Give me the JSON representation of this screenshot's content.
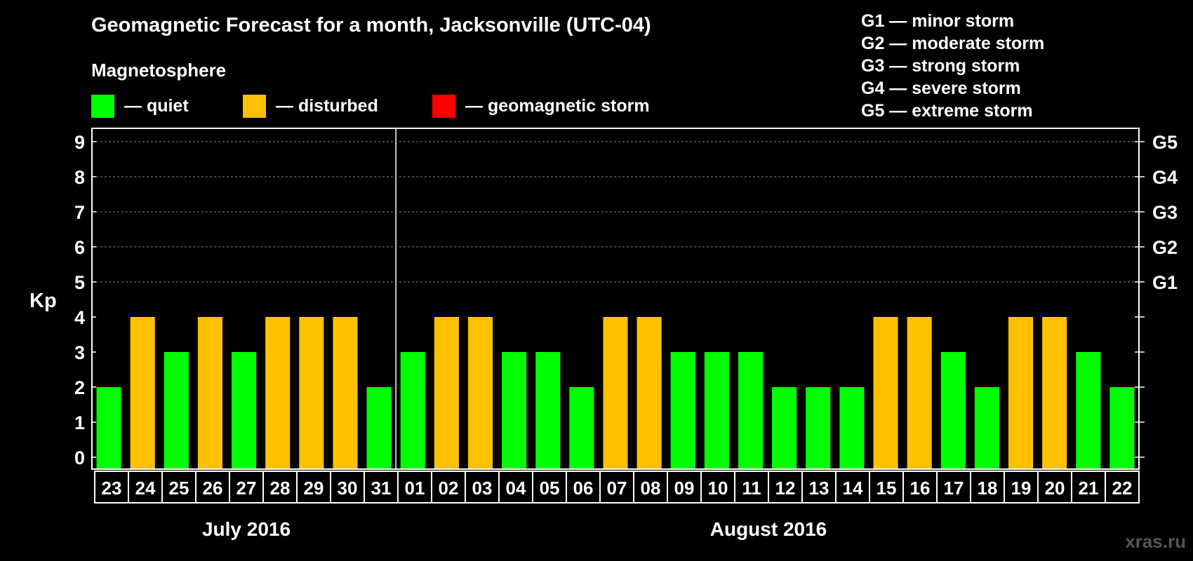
{
  "title": "Geomagnetic Forecast for a month, Jacksonville (UTC-04)",
  "legend": {
    "heading": "Magnetosphere",
    "items": [
      {
        "label": "— quiet",
        "color": "#00ff00"
      },
      {
        "label": "— disturbed",
        "color": "#ffc000"
      },
      {
        "label": "— geomagnetic storm",
        "color": "#ff0000"
      }
    ]
  },
  "storm_levels": [
    "G1 — minor storm",
    "G2 — moderate storm",
    "G3 — strong storm",
    "G4 — severe storm",
    "G5 — extreme storm"
  ],
  "watermark": "xras.ru",
  "chart_data": {
    "type": "bar",
    "ylabel": "Kp",
    "ylim": [
      0,
      9
    ],
    "yticks": [
      "0",
      "1",
      "2",
      "3",
      "4",
      "5",
      "6",
      "7",
      "8",
      "9"
    ],
    "right_ticks": [
      {
        "value": 5,
        "label": "G1"
      },
      {
        "value": 6,
        "label": "G2"
      },
      {
        "value": 7,
        "label": "G3"
      },
      {
        "value": 8,
        "label": "G4"
      },
      {
        "value": 9,
        "label": "G5"
      }
    ],
    "grid": "dashed at Kp 5-9",
    "categories": [
      "23",
      "24",
      "25",
      "26",
      "27",
      "28",
      "29",
      "30",
      "31",
      "01",
      "02",
      "03",
      "04",
      "05",
      "06",
      "07",
      "08",
      "09",
      "10",
      "11",
      "12",
      "13",
      "14",
      "15",
      "16",
      "17",
      "18",
      "19",
      "20",
      "21",
      "22"
    ],
    "values": [
      2,
      4,
      3,
      4,
      3,
      4,
      4,
      4,
      2,
      3,
      4,
      4,
      3,
      3,
      2,
      4,
      4,
      3,
      3,
      3,
      2,
      2,
      2,
      4,
      4,
      3,
      2,
      4,
      4,
      3,
      2
    ],
    "month_groups": [
      {
        "label": "July 2016",
        "count": 9
      },
      {
        "label": "August 2016",
        "count": 22
      }
    ],
    "colors": {
      "quiet": "#00ff00",
      "disturbed": "#ffc000",
      "storm": "#ff0000"
    }
  }
}
